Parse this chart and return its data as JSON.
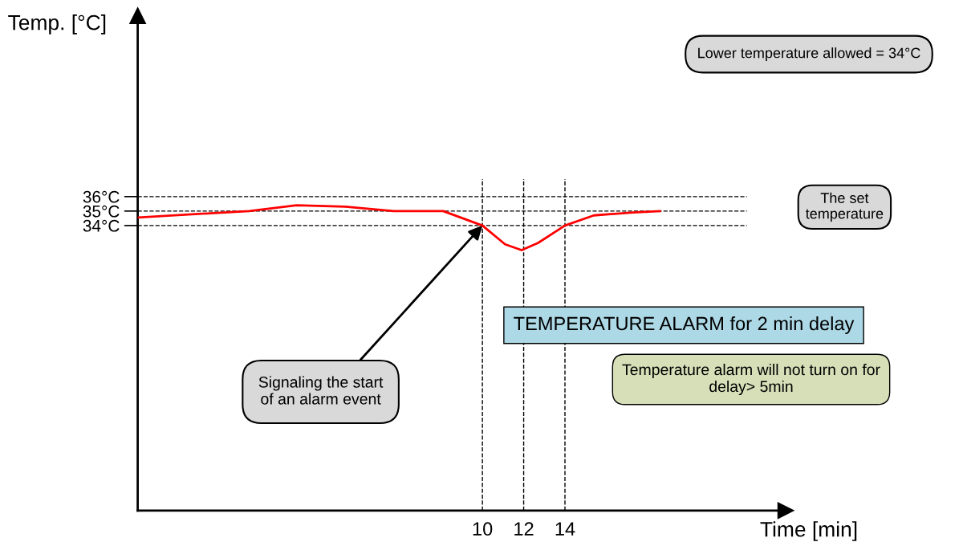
{
  "chart_data": {
    "type": "line",
    "xlabel": "Time [min]",
    "ylabel": "Temp. [°C]",
    "x": [
      -6.66,
      -1.3,
      1.0,
      3.36,
      5.7,
      8.1,
      10,
      11.1,
      11.9,
      12.7,
      14,
      15.4,
      17.3,
      18.6
    ],
    "series": [
      {
        "color": "#ff0000",
        "values": [
          34.56,
          35,
          35.4,
          35.3,
          35,
          35,
          34,
          32.7,
          32.3,
          32.8,
          34,
          34.7,
          34.9,
          35
        ]
      }
    ],
    "xlim": [
      -6.7,
      24.7
    ],
    "ylim": [
      14.3,
      48.5
    ],
    "xticks": [
      10,
      12,
      14
    ],
    "yticks": [
      {
        "value": 34,
        "label": "34°C"
      },
      {
        "value": 35,
        "label": "35°C"
      },
      {
        "value": 36,
        "label": "36°C"
      }
    ],
    "ref_lines": [
      {
        "axis": "y",
        "value": 36,
        "line_style": "dashed",
        "color": "#000000"
      },
      {
        "axis": "y",
        "value": 35,
        "line_style": "dashed",
        "color": "#000000"
      },
      {
        "axis": "y",
        "value": 34,
        "line_style": "dashed",
        "color": "#000000"
      },
      {
        "axis": "x",
        "value": 10,
        "line_style": "dashed",
        "color": "#000000"
      },
      {
        "axis": "x",
        "value": 12,
        "line_style": "dashed",
        "color": "#000000"
      },
      {
        "axis": "x",
        "value": 14,
        "line_style": "dashed",
        "color": "#000000"
      }
    ],
    "annotations": [
      "Lower temperature allowed = 34°C",
      "The set\ntemperature",
      "TEMPERATURE ALARM for 2 min delay",
      "Temperature alarm will not turn on for\ndelay> 5min",
      {
        "text": "Signaling the start\nof an alarm event",
        "x": 10,
        "y": 34
      }
    ],
    "grid": false,
    "legend": false,
    "marker": "none",
    "line_style": "solid"
  }
}
